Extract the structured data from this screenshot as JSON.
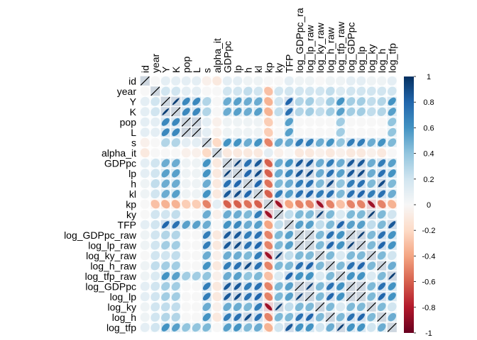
{
  "chart_data": {
    "type": "heatmap",
    "variables": [
      "id",
      "year",
      "Y",
      "K",
      "pop",
      "L",
      "s",
      "alpha_it",
      "GDPpc",
      "lp",
      "h",
      "kl",
      "kp",
      "ky",
      "TFP",
      "log_GDPpc_raw",
      "log_lp_raw",
      "log_ky_raw",
      "log_h_raw",
      "log_tfp_raw",
      "log_GDPpc",
      "log_lp",
      "log_ky",
      "log_h",
      "log_tfp"
    ],
    "column_labels": [
      "id",
      "year",
      "Y",
      "K",
      "pop",
      "L",
      "s",
      "alpha_it",
      "GDPpc",
      "lp",
      "h",
      "kl",
      "kp",
      "ky",
      "TFP",
      "log_GDPpc_ra",
      "log_lp_raw",
      "log_ky_raw",
      "log_h_raw",
      "log_tfp_raw",
      "log_GDPpc",
      "log_lp",
      "log_ky",
      "log_h",
      "log_tfp"
    ],
    "matrix": [
      [
        1.0,
        0.0,
        0.1,
        0.1,
        0.1,
        0.1,
        -0.05,
        -0.1,
        0.1,
        0.1,
        0.05,
        0.05,
        0.0,
        0.0,
        0.1,
        0.05,
        0.05,
        0.0,
        0.05,
        0.05,
        0.1,
        0.1,
        0.05,
        0.05,
        0.1
      ],
      [
        0.0,
        1.0,
        0.2,
        0.2,
        0.1,
        0.1,
        0.0,
        0.0,
        0.2,
        0.2,
        0.25,
        0.2,
        -0.3,
        0.2,
        0.2,
        0.2,
        0.2,
        0.2,
        0.25,
        0.15,
        0.2,
        0.2,
        0.2,
        0.2,
        0.2
      ],
      [
        0.1,
        0.2,
        1.0,
        0.95,
        0.65,
        0.65,
        0.3,
        0.0,
        0.5,
        0.55,
        0.5,
        0.5,
        -0.35,
        0.2,
        0.8,
        0.3,
        0.35,
        0.2,
        0.35,
        0.6,
        0.35,
        0.35,
        0.25,
        0.3,
        0.6
      ],
      [
        0.1,
        0.2,
        0.95,
        1.0,
        0.65,
        0.65,
        0.3,
        0.0,
        0.5,
        0.55,
        0.5,
        0.55,
        -0.35,
        0.25,
        0.75,
        0.3,
        0.35,
        0.25,
        0.35,
        0.55,
        0.35,
        0.35,
        0.25,
        0.3,
        0.55
      ],
      [
        0.1,
        0.1,
        0.65,
        0.65,
        1.0,
        0.99,
        0.1,
        -0.05,
        0.05,
        0.05,
        0.05,
        0.05,
        -0.25,
        0.0,
        0.55,
        0.0,
        0.0,
        0.0,
        0.0,
        0.35,
        0.0,
        0.0,
        0.0,
        0.0,
        0.4
      ],
      [
        0.1,
        0.1,
        0.65,
        0.65,
        0.99,
        1.0,
        0.1,
        -0.05,
        0.05,
        0.05,
        0.05,
        0.05,
        -0.25,
        0.0,
        0.55,
        0.0,
        0.0,
        0.0,
        0.0,
        0.35,
        0.0,
        0.0,
        0.0,
        0.0,
        0.4
      ],
      [
        -0.05,
        0.0,
        0.3,
        0.3,
        0.1,
        0.1,
        1.0,
        -0.2,
        0.6,
        0.6,
        0.5,
        0.6,
        -0.5,
        0.5,
        0.5,
        0.7,
        0.7,
        0.5,
        0.6,
        0.4,
        0.7,
        0.7,
        0.5,
        0.6,
        0.45
      ],
      [
        -0.1,
        0.0,
        0.0,
        0.0,
        -0.05,
        -0.05,
        -0.2,
        1.0,
        -0.1,
        -0.1,
        -0.1,
        -0.1,
        0.1,
        -0.05,
        0.0,
        -0.1,
        -0.1,
        -0.05,
        -0.1,
        -0.05,
        -0.1,
        -0.1,
        -0.05,
        -0.1,
        0.0
      ],
      [
        0.1,
        0.2,
        0.5,
        0.5,
        0.05,
        0.05,
        0.6,
        -0.1,
        1.0,
        0.95,
        0.75,
        0.85,
        -0.6,
        0.5,
        0.6,
        0.85,
        0.85,
        0.5,
        0.7,
        0.5,
        0.85,
        0.85,
        0.5,
        0.7,
        0.55
      ],
      [
        0.1,
        0.2,
        0.55,
        0.55,
        0.05,
        0.05,
        0.6,
        -0.1,
        0.95,
        1.0,
        0.8,
        0.9,
        -0.6,
        0.5,
        0.65,
        0.85,
        0.9,
        0.5,
        0.75,
        0.55,
        0.85,
        0.9,
        0.5,
        0.75,
        0.6
      ],
      [
        0.05,
        0.25,
        0.5,
        0.5,
        0.05,
        0.05,
        0.5,
        -0.1,
        0.75,
        0.8,
        1.0,
        0.8,
        -0.55,
        0.45,
        0.5,
        0.7,
        0.75,
        0.45,
        0.9,
        0.4,
        0.7,
        0.75,
        0.45,
        0.9,
        0.45
      ],
      [
        0.05,
        0.2,
        0.5,
        0.55,
        0.05,
        0.05,
        0.6,
        -0.1,
        0.85,
        0.9,
        0.8,
        1.0,
        -0.6,
        0.7,
        0.55,
        0.75,
        0.8,
        0.7,
        0.75,
        0.45,
        0.75,
        0.8,
        0.7,
        0.75,
        0.5
      ],
      [
        0.0,
        -0.3,
        -0.35,
        -0.35,
        -0.25,
        -0.25,
        -0.5,
        0.1,
        -0.6,
        -0.6,
        -0.55,
        -0.6,
        1.0,
        -0.85,
        -0.4,
        -0.5,
        -0.5,
        -0.85,
        -0.5,
        -0.3,
        -0.5,
        -0.5,
        -0.85,
        -0.5,
        -0.35
      ],
      [
        0.0,
        0.2,
        0.2,
        0.25,
        0.0,
        0.0,
        0.5,
        -0.05,
        0.5,
        0.5,
        0.45,
        0.7,
        -0.85,
        1.0,
        0.25,
        0.45,
        0.45,
        0.95,
        0.45,
        0.15,
        0.45,
        0.45,
        0.95,
        0.45,
        0.2
      ],
      [
        0.1,
        0.2,
        0.8,
        0.75,
        0.55,
        0.55,
        0.5,
        0.0,
        0.6,
        0.65,
        0.5,
        0.55,
        -0.4,
        0.25,
        1.0,
        0.55,
        0.55,
        0.25,
        0.45,
        0.8,
        0.55,
        0.55,
        0.25,
        0.45,
        0.85
      ],
      [
        0.05,
        0.2,
        0.3,
        0.3,
        0.0,
        0.0,
        0.7,
        -0.1,
        0.85,
        0.85,
        0.7,
        0.75,
        -0.5,
        0.45,
        0.55,
        1.0,
        0.98,
        0.45,
        0.75,
        0.6,
        0.98,
        0.95,
        0.45,
        0.75,
        0.6
      ],
      [
        0.05,
        0.2,
        0.35,
        0.35,
        0.0,
        0.0,
        0.7,
        -0.1,
        0.85,
        0.9,
        0.75,
        0.8,
        -0.5,
        0.45,
        0.55,
        0.98,
        1.0,
        0.45,
        0.8,
        0.6,
        0.95,
        0.98,
        0.45,
        0.8,
        0.6
      ],
      [
        0.0,
        0.2,
        0.2,
        0.25,
        0.0,
        0.0,
        0.5,
        -0.05,
        0.5,
        0.5,
        0.45,
        0.7,
        -0.85,
        0.95,
        0.25,
        0.45,
        0.45,
        1.0,
        0.45,
        0.15,
        0.45,
        0.45,
        0.98,
        0.45,
        0.2
      ],
      [
        0.05,
        0.25,
        0.35,
        0.35,
        0.0,
        0.0,
        0.6,
        -0.1,
        0.7,
        0.75,
        0.9,
        0.75,
        -0.5,
        0.45,
        0.45,
        0.75,
        0.8,
        0.45,
        1.0,
        0.45,
        0.75,
        0.8,
        0.45,
        0.98,
        0.5
      ],
      [
        0.05,
        0.15,
        0.6,
        0.55,
        0.35,
        0.35,
        0.4,
        -0.05,
        0.5,
        0.55,
        0.4,
        0.45,
        -0.3,
        0.15,
        0.8,
        0.6,
        0.6,
        0.15,
        0.45,
        1.0,
        0.6,
        0.6,
        0.15,
        0.45,
        0.95
      ],
      [
        0.1,
        0.2,
        0.35,
        0.35,
        0.0,
        0.0,
        0.7,
        -0.1,
        0.85,
        0.85,
        0.7,
        0.75,
        -0.5,
        0.45,
        0.55,
        0.98,
        0.95,
        0.45,
        0.75,
        0.6,
        1.0,
        0.98,
        0.45,
        0.75,
        0.6
      ],
      [
        0.1,
        0.2,
        0.35,
        0.35,
        0.0,
        0.0,
        0.7,
        -0.1,
        0.85,
        0.9,
        0.75,
        0.8,
        -0.5,
        0.45,
        0.55,
        0.95,
        0.98,
        0.45,
        0.8,
        0.6,
        0.98,
        1.0,
        0.45,
        0.8,
        0.6
      ],
      [
        0.05,
        0.2,
        0.25,
        0.25,
        0.0,
        0.0,
        0.5,
        -0.05,
        0.5,
        0.5,
        0.45,
        0.7,
        -0.85,
        0.95,
        0.25,
        0.45,
        0.45,
        0.98,
        0.45,
        0.15,
        0.45,
        0.45,
        1.0,
        0.45,
        0.2
      ],
      [
        0.05,
        0.2,
        0.3,
        0.3,
        0.0,
        0.0,
        0.6,
        -0.1,
        0.7,
        0.75,
        0.9,
        0.75,
        -0.5,
        0.45,
        0.45,
        0.75,
        0.8,
        0.45,
        0.98,
        0.45,
        0.75,
        0.8,
        0.45,
        1.0,
        0.5
      ],
      [
        0.1,
        0.2,
        0.6,
        0.55,
        0.4,
        0.4,
        0.45,
        0.0,
        0.55,
        0.6,
        0.45,
        0.5,
        -0.35,
        0.2,
        0.85,
        0.6,
        0.6,
        0.2,
        0.5,
        0.95,
        0.6,
        0.6,
        0.2,
        0.5,
        1.0
      ]
    ],
    "colorbar_ticks": [
      "1",
      "0.8",
      "0.6",
      "0.4",
      "0.2",
      "0",
      "-0.2",
      "-0.4",
      "-0.6",
      "-0.8",
      "-1"
    ],
    "color_range": [
      -1,
      1
    ],
    "colors": {
      "low": "#67001f",
      "mid": "#f7f7f7",
      "high": "#053061",
      "grid": "#ffffff",
      "diagonal_line": "#000000"
    }
  }
}
